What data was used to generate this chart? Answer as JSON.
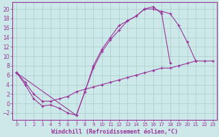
{
  "background_color": "#cce8e8",
  "line_color": "#993399",
  "grid_color": "#aacccc",
  "xlabel": "Windchill (Refroidissement éolien,°C)",
  "xlabel_fontsize": 6.0,
  "xtick_fontsize": 5.0,
  "ytick_fontsize": 5.5,
  "xlim": [
    -0.5,
    23.5
  ],
  "ylim": [
    -3.5,
    21.5
  ],
  "xticks": [
    0,
    1,
    2,
    3,
    4,
    5,
    6,
    7,
    8,
    9,
    10,
    11,
    12,
    13,
    14,
    15,
    16,
    17,
    18,
    19,
    20,
    21,
    22,
    23
  ],
  "yticks": [
    -2,
    0,
    2,
    4,
    6,
    8,
    10,
    12,
    14,
    16,
    18,
    20
  ],
  "series": [
    {
      "x": [
        0,
        1,
        2,
        3,
        4,
        5,
        6,
        7,
        8,
        9,
        10,
        11,
        12,
        13,
        14,
        15,
        16,
        17,
        18,
        19,
        20,
        21
      ],
      "y": [
        6.5,
        4.0,
        1.0,
        -0.5,
        -0.3,
        -1.0,
        -2.0,
        -2.5,
        2.5,
        7.5,
        11.0,
        13.5,
        15.5,
        17.5,
        18.5,
        20.0,
        20.0,
        19.5,
        19.0,
        16.5,
        13.0,
        9.0
      ]
    },
    {
      "x": [
        0,
        7,
        8,
        9,
        10,
        11,
        12,
        13,
        14,
        15,
        16,
        17,
        18
      ],
      "y": [
        6.5,
        -2.5,
        2.5,
        8.0,
        11.5,
        14.0,
        16.5,
        17.5,
        18.5,
        20.0,
        20.5,
        19.0,
        8.5
      ]
    },
    {
      "x": [
        0,
        1,
        2,
        3,
        4,
        5,
        6,
        7,
        8,
        9,
        10,
        11,
        12,
        13,
        14,
        15,
        16,
        17,
        18,
        19,
        20,
        21,
        22,
        23
      ],
      "y": [
        6.5,
        4.5,
        2.0,
        0.5,
        0.5,
        1.0,
        1.5,
        2.5,
        3.0,
        3.5,
        4.0,
        4.5,
        5.0,
        5.5,
        6.0,
        6.5,
        7.0,
        7.5,
        7.5,
        8.0,
        8.5,
        9.0,
        9.0,
        9.0
      ]
    }
  ]
}
